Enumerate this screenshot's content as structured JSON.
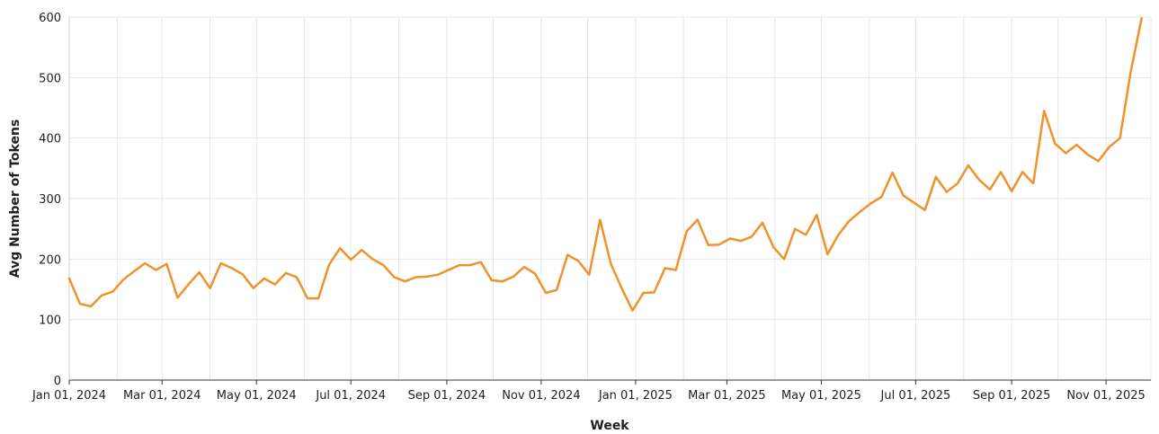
{
  "chart_data": {
    "type": "line",
    "xlabel": "Week",
    "ylabel": "Avg Number of Tokens",
    "ylim": [
      0,
      600
    ],
    "xlim": [
      "2024-01-01",
      "2025-11-30"
    ],
    "yticks": [
      0,
      100,
      200,
      300,
      400,
      500,
      600
    ],
    "xticks": [
      {
        "date": "2024-01-01",
        "label": "Jan 01, 2024"
      },
      {
        "date": "2024-03-01",
        "label": "Mar 01, 2024"
      },
      {
        "date": "2024-05-01",
        "label": "May 01, 2024"
      },
      {
        "date": "2024-07-01",
        "label": "Jul 01, 2024"
      },
      {
        "date": "2024-09-01",
        "label": "Sep 01, 2024"
      },
      {
        "date": "2024-11-01",
        "label": "Nov 01, 2024"
      },
      {
        "date": "2025-01-01",
        "label": "Jan 01, 2025"
      },
      {
        "date": "2025-03-01",
        "label": "Mar 01, 2025"
      },
      {
        "date": "2025-05-01",
        "label": "May 01, 2025"
      },
      {
        "date": "2025-07-01",
        "label": "Jul 01, 2025"
      },
      {
        "date": "2025-09-01",
        "label": "Sep 01, 2025"
      },
      {
        "date": "2025-11-01",
        "label": "Nov 01, 2025"
      }
    ],
    "grid": true,
    "legend": "none",
    "color": "#f0922b",
    "series": [
      {
        "x": [
          "2024-01-01",
          "2024-01-08",
          "2024-01-15",
          "2024-01-22",
          "2024-01-29",
          "2024-02-05",
          "2024-02-12",
          "2024-02-19",
          "2024-02-26",
          "2024-03-04",
          "2024-03-11",
          "2024-03-18",
          "2024-03-25",
          "2024-04-01",
          "2024-04-08",
          "2024-04-15",
          "2024-04-22",
          "2024-04-29",
          "2024-05-06",
          "2024-05-13",
          "2024-05-20",
          "2024-05-27",
          "2024-06-03",
          "2024-06-10",
          "2024-06-17",
          "2024-06-24",
          "2024-07-01",
          "2024-07-08",
          "2024-07-15",
          "2024-07-22",
          "2024-07-29",
          "2024-08-05",
          "2024-08-12",
          "2024-08-19",
          "2024-08-26",
          "2024-09-02",
          "2024-09-09",
          "2024-09-16",
          "2024-09-23",
          "2024-09-30",
          "2024-10-07",
          "2024-10-14",
          "2024-10-21",
          "2024-10-28",
          "2024-11-04",
          "2024-11-11",
          "2024-11-18",
          "2024-11-25",
          "2024-12-02",
          "2024-12-09",
          "2024-12-16",
          "2024-12-23",
          "2024-12-30",
          "2025-01-06",
          "2025-01-13",
          "2025-01-20",
          "2025-01-27",
          "2025-02-03",
          "2025-02-10",
          "2025-02-17",
          "2025-02-24",
          "2025-03-03",
          "2025-03-10",
          "2025-03-17",
          "2025-03-24",
          "2025-03-31",
          "2025-04-07",
          "2025-04-14",
          "2025-04-21",
          "2025-04-28",
          "2025-05-05",
          "2025-05-12",
          "2025-05-19",
          "2025-05-26",
          "2025-06-02",
          "2025-06-09",
          "2025-06-16",
          "2025-06-23",
          "2025-06-30",
          "2025-07-07",
          "2025-07-14",
          "2025-07-21",
          "2025-07-28",
          "2025-08-04",
          "2025-08-11",
          "2025-08-18",
          "2025-08-25",
          "2025-09-01",
          "2025-09-08",
          "2025-09-15",
          "2025-09-22",
          "2025-09-29",
          "2025-10-06",
          "2025-10-13",
          "2025-10-20",
          "2025-10-27",
          "2025-11-03",
          "2025-11-10",
          "2025-11-17",
          "2025-11-24"
        ],
        "values": [
          168,
          126,
          122,
          140,
          146,
          166,
          180,
          193,
          182,
          192,
          136,
          158,
          178,
          152,
          193,
          185,
          175,
          152,
          168,
          158,
          177,
          170,
          135,
          135,
          191,
          218,
          199,
          215,
          200,
          190,
          170,
          163,
          170,
          171,
          174,
          182,
          190,
          190,
          195,
          165,
          163,
          171,
          187,
          176,
          144,
          149,
          207,
          197,
          174,
          265,
          192,
          152,
          115,
          144,
          145,
          185,
          182,
          246,
          265,
          223,
          224,
          234,
          230,
          237,
          260,
          220,
          200,
          250,
          240,
          273,
          208,
          240,
          263,
          278,
          292,
          303,
          343,
          305,
          293,
          281,
          336,
          311,
          325,
          355,
          331,
          315,
          344,
          312,
          344,
          325,
          445,
          391,
          375,
          389,
          373,
          362,
          385,
          400,
          510,
          598
        ]
      }
    ]
  }
}
